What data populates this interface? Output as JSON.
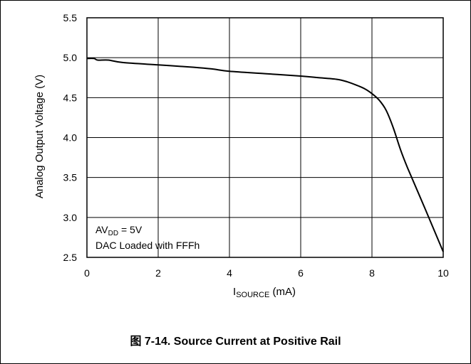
{
  "chart_data": {
    "type": "line",
    "xlabel_main": "I",
    "xlabel_sub": "SOURCE",
    "xlabel_unit": " (mA)",
    "ylabel": "Analog Output Voltage (V)",
    "xlim": [
      0,
      10
    ],
    "ylim": [
      2.5,
      5.5
    ],
    "x_ticks": [
      "0",
      "2",
      "4",
      "6",
      "8",
      "10"
    ],
    "y_ticks": [
      "2.5",
      "3.0",
      "3.5",
      "4.0",
      "4.5",
      "5.0",
      "5.5"
    ],
    "grid": true,
    "series": [
      {
        "x": [
          0,
          0.2,
          0.3,
          0.6,
          1.0,
          2.0,
          3.0,
          3.5,
          4.0,
          5.0,
          6.0,
          6.5,
          7.0,
          7.3,
          7.6,
          7.8,
          8.0,
          8.2,
          8.4,
          8.6,
          8.8,
          9.0,
          9.5,
          10.0
        ],
        "y": [
          4.99,
          4.99,
          4.97,
          4.97,
          4.94,
          4.91,
          4.88,
          4.86,
          4.83,
          4.8,
          4.77,
          4.75,
          4.73,
          4.7,
          4.65,
          4.61,
          4.55,
          4.47,
          4.34,
          4.12,
          3.85,
          3.62,
          3.1,
          2.57
        ]
      }
    ],
    "annotations": {
      "line1_main": "AV",
      "line1_sub": "DD",
      "line1_tail": " = 5V",
      "line2": "DAC Loaded with FFFh"
    }
  },
  "caption": "图 7-14. Source Current at Positive Rail",
  "colors": {
    "line": "#000000",
    "grid": "#000000"
  }
}
